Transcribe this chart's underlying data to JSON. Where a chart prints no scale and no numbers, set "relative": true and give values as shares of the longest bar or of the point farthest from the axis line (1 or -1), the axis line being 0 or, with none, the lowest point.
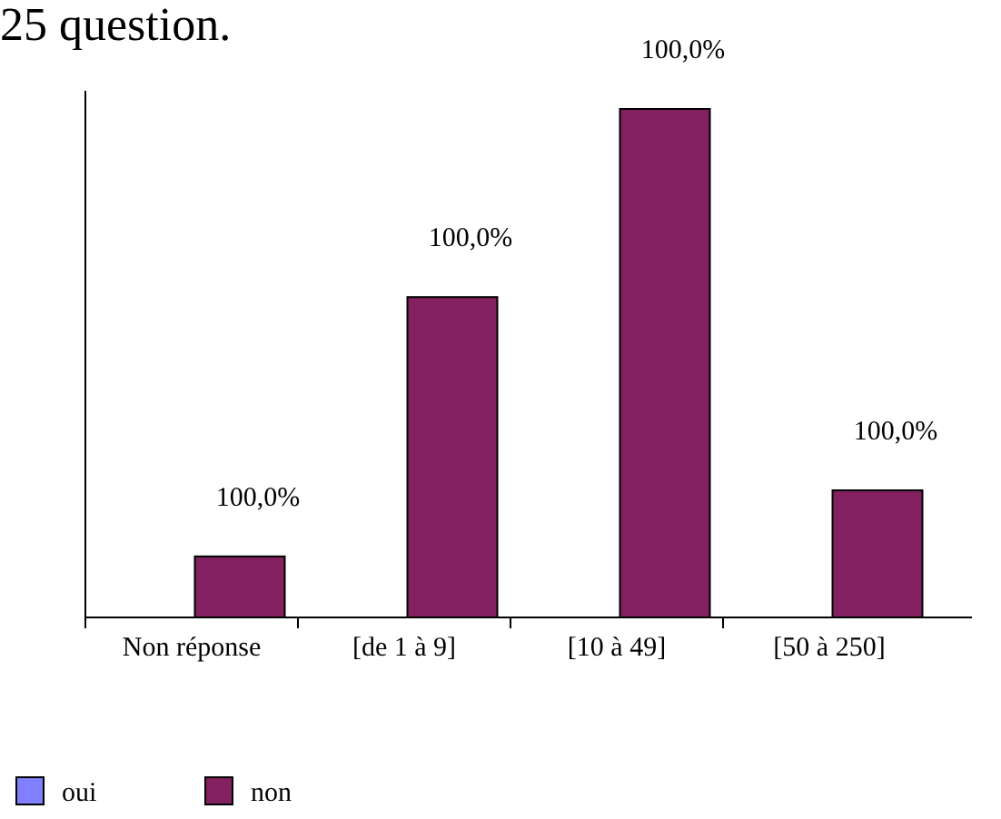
{
  "chart_data": {
    "type": "bar",
    "title": "25 question.",
    "relative": true,
    "categories": [
      "Non réponse",
      "[de 1 à 9]",
      "[10 à 49]",
      "[50 à 250]"
    ],
    "series": [
      {
        "name": "oui",
        "color": "#8080ff",
        "values": [
          0,
          0,
          0,
          0
        ]
      },
      {
        "name": "non",
        "color": "#832060",
        "values": [
          0.12,
          0.63,
          1,
          0.25
        ]
      }
    ],
    "annotations": [
      {
        "text": "100,0%",
        "x": "Non réponse",
        "y": 0.12
      },
      {
        "text": "100,0%",
        "x": "[de 1 à 9]",
        "y": 0.63
      },
      {
        "text": "100,0%",
        "x": "[10 à 49]",
        "y": 1
      },
      {
        "text": "100,0%",
        "x": "[50 à 250]",
        "y": 0.25
      }
    ],
    "legend": "bottom left"
  }
}
